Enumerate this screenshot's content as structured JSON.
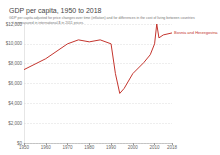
{
  "chart_data": {
    "type": "line",
    "title": "GDP per capita, 1950 to 2018",
    "subtitle": "GDP per capita adjusted for price changes over time (inflation) and for differences in the cost of living between countries – it is measured in international-$ in 2011 prices.",
    "x": [
      1950,
      1960,
      1970,
      1975,
      1980,
      1985,
      1990,
      1992,
      1994,
      1996,
      2000,
      2005,
      2008,
      2010,
      2011,
      2012,
      2014,
      2018
    ],
    "series": [
      {
        "name": "Bosnia and Herzegovina",
        "color": "#c4352e",
        "values": [
          7400,
          8500,
          10000,
          10400,
          10200,
          10400,
          10000,
          7000,
          5000,
          5500,
          7000,
          8100,
          8900,
          10000,
          12000,
          10600,
          10900,
          11100
        ]
      }
    ],
    "xlim": [
      1950,
      2018
    ],
    "xticks": [
      1950,
      1960,
      1970,
      1980,
      1990,
      2000,
      2010,
      2018
    ],
    "ylim": [
      0,
      12000
    ],
    "yticks": [
      {
        "value": 0,
        "label": "$0"
      },
      {
        "value": 2000,
        "label": "$2,000"
      },
      {
        "value": 4000,
        "label": "$4,000"
      },
      {
        "value": 6000,
        "label": "$6,000"
      },
      {
        "value": 8000,
        "label": "$8,000"
      },
      {
        "value": 10000,
        "label": "$10,000"
      },
      {
        "value": 12000,
        "label": "$12,000"
      }
    ],
    "grid": true
  }
}
